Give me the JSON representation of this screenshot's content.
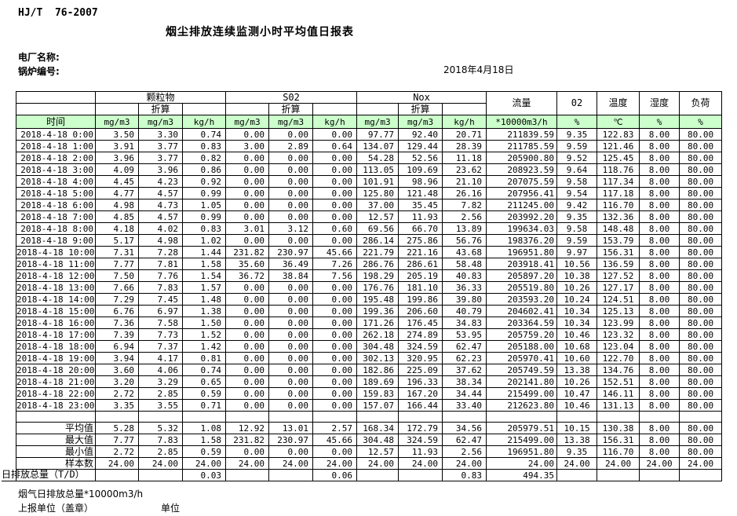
{
  "colors": {
    "header_fill": "#ccffcc",
    "border": "#000000"
  },
  "page": {
    "standard": "HJ/T  76-2007",
    "title": "烟尘排放连续监测小时平均值日报表",
    "plant_label": "电厂名称:",
    "boiler_label": "锅炉编号:",
    "date": "2018年4月18日"
  },
  "table": {
    "header": {
      "time": "时间",
      "groups": [
        "颗粒物",
        "S02",
        "Nox"
      ],
      "converted": "折算",
      "flow": "流量",
      "o2": "02",
      "temp": "温度",
      "humidity": "湿度",
      "load": "负荷",
      "units": [
        "mg/m3",
        "mg/m3",
        "kg/h",
        "mg/m3",
        "mg/m3",
        "kg/h",
        "mg/m3",
        "mg/m3",
        "kg/h",
        "*10000m3/h",
        "%",
        "℃",
        "%",
        "%"
      ]
    },
    "rows": [
      {
        "time": "2018-4-18 0:00",
        "values": [
          "3.50",
          "3.30",
          "0.74",
          "0.00",
          "0.00",
          "0.00",
          "97.77",
          "92.40",
          "20.71",
          "211839.59",
          "9.35",
          "122.83",
          "8.00",
          "80.00"
        ]
      },
      {
        "time": "2018-4-18 1:00",
        "values": [
          "3.91",
          "3.77",
          "0.83",
          "3.00",
          "2.89",
          "0.64",
          "134.07",
          "129.44",
          "28.39",
          "211785.59",
          "9.59",
          "121.46",
          "8.00",
          "80.00"
        ]
      },
      {
        "time": "2018-4-18 2:00",
        "values": [
          "3.96",
          "3.77",
          "0.82",
          "0.00",
          "0.00",
          "0.00",
          "54.28",
          "52.56",
          "11.18",
          "205900.80",
          "9.52",
          "125.45",
          "8.00",
          "80.00"
        ]
      },
      {
        "time": "2018-4-18 3:00",
        "values": [
          "4.09",
          "3.96",
          "0.86",
          "0.00",
          "0.00",
          "0.00",
          "113.05",
          "109.69",
          "23.62",
          "208923.59",
          "9.64",
          "118.76",
          "8.00",
          "80.00"
        ]
      },
      {
        "time": "2018-4-18 4:00",
        "values": [
          "4.45",
          "4.23",
          "0.92",
          "0.00",
          "0.00",
          "0.00",
          "101.91",
          "98.96",
          "21.10",
          "207075.59",
          "9.58",
          "117.34",
          "8.00",
          "80.00"
        ]
      },
      {
        "time": "2018-4-18 5:00",
        "values": [
          "4.77",
          "4.57",
          "0.99",
          "0.00",
          "0.00",
          "0.00",
          "125.80",
          "121.48",
          "26.16",
          "207956.41",
          "9.54",
          "117.18",
          "8.00",
          "80.00"
        ]
      },
      {
        "time": "2018-4-18 6:00",
        "values": [
          "4.98",
          "4.73",
          "1.05",
          "0.00",
          "0.00",
          "0.00",
          "37.00",
          "35.45",
          "7.82",
          "211245.00",
          "9.42",
          "116.70",
          "8.00",
          "80.00"
        ]
      },
      {
        "time": "2018-4-18 7:00",
        "values": [
          "4.85",
          "4.57",
          "0.99",
          "0.00",
          "0.00",
          "0.00",
          "12.57",
          "11.93",
          "2.56",
          "203992.20",
          "9.35",
          "132.36",
          "8.00",
          "80.00"
        ]
      },
      {
        "time": "2018-4-18 8:00",
        "values": [
          "4.18",
          "4.02",
          "0.83",
          "3.01",
          "3.12",
          "0.60",
          "69.56",
          "66.70",
          "13.89",
          "199634.03",
          "9.58",
          "148.48",
          "8.00",
          "80.00"
        ]
      },
      {
        "time": "2018-4-18 9:00",
        "values": [
          "5.17",
          "4.98",
          "1.02",
          "0.00",
          "0.00",
          "0.00",
          "286.14",
          "275.86",
          "56.76",
          "198376.20",
          "9.59",
          "153.79",
          "8.00",
          "80.00"
        ]
      },
      {
        "time": "2018-4-18 10:00",
        "values": [
          "7.31",
          "7.28",
          "1.44",
          "231.82",
          "230.97",
          "45.66",
          "221.79",
          "221.16",
          "43.68",
          "196951.80",
          "9.97",
          "156.31",
          "8.00",
          "80.00"
        ]
      },
      {
        "time": "2018-4-18 11:00",
        "values": [
          "7.77",
          "7.81",
          "1.58",
          "35.60",
          "36.49",
          "7.26",
          "286.76",
          "286.61",
          "58.48",
          "203918.41",
          "10.56",
          "136.59",
          "8.00",
          "80.00"
        ]
      },
      {
        "time": "2018-4-18 12:00",
        "values": [
          "7.50",
          "7.76",
          "1.54",
          "36.72",
          "38.84",
          "7.56",
          "198.29",
          "205.19",
          "40.83",
          "205897.20",
          "10.38",
          "127.52",
          "8.00",
          "80.00"
        ]
      },
      {
        "time": "2018-4-18 13:00",
        "values": [
          "7.66",
          "7.83",
          "1.57",
          "0.00",
          "0.00",
          "0.00",
          "176.76",
          "181.10",
          "36.33",
          "205519.80",
          "10.26",
          "127.17",
          "8.00",
          "80.00"
        ]
      },
      {
        "time": "2018-4-18 14:00",
        "values": [
          "7.29",
          "7.45",
          "1.48",
          "0.00",
          "0.00",
          "0.00",
          "195.48",
          "199.86",
          "39.80",
          "203593.20",
          "10.24",
          "124.51",
          "8.00",
          "80.00"
        ]
      },
      {
        "time": "2018-4-18 15:00",
        "values": [
          "6.76",
          "6.97",
          "1.38",
          "0.00",
          "0.00",
          "0.00",
          "199.36",
          "206.60",
          "40.79",
          "204602.41",
          "10.34",
          "125.13",
          "8.00",
          "80.00"
        ]
      },
      {
        "time": "2018-4-18 16:00",
        "values": [
          "7.36",
          "7.58",
          "1.50",
          "0.00",
          "0.00",
          "0.00",
          "171.26",
          "176.45",
          "34.83",
          "203364.59",
          "10.34",
          "123.99",
          "8.00",
          "80.00"
        ]
      },
      {
        "time": "2018-4-18 17:00",
        "values": [
          "7.39",
          "7.73",
          "1.52",
          "0.00",
          "0.00",
          "0.00",
          "262.18",
          "274.89",
          "53.95",
          "205759.20",
          "10.46",
          "123.32",
          "8.00",
          "80.00"
        ]
      },
      {
        "time": "2018-4-18 18:00",
        "values": [
          "6.94",
          "7.37",
          "1.42",
          "0.00",
          "0.00",
          "0.00",
          "304.48",
          "324.59",
          "62.47",
          "205188.00",
          "10.68",
          "123.04",
          "8.00",
          "80.00"
        ]
      },
      {
        "time": "2018-4-18 19:00",
        "values": [
          "3.94",
          "4.17",
          "0.81",
          "0.00",
          "0.00",
          "0.00",
          "302.13",
          "320.95",
          "62.23",
          "205970.41",
          "10.60",
          "122.70",
          "8.00",
          "80.00"
        ]
      },
      {
        "time": "2018-4-18 20:00",
        "values": [
          "3.60",
          "4.06",
          "0.74",
          "0.00",
          "0.00",
          "0.00",
          "182.86",
          "225.09",
          "37.62",
          "205749.59",
          "13.38",
          "134.76",
          "8.00",
          "80.00"
        ]
      },
      {
        "time": "2018-4-18 21:00",
        "values": [
          "3.20",
          "3.29",
          "0.65",
          "0.00",
          "0.00",
          "0.00",
          "189.69",
          "196.33",
          "38.34",
          "202141.80",
          "10.26",
          "152.51",
          "8.00",
          "80.00"
        ]
      },
      {
        "time": "2018-4-18 22:00",
        "values": [
          "2.72",
          "2.85",
          "0.59",
          "0.00",
          "0.00",
          "0.00",
          "159.83",
          "167.20",
          "34.44",
          "215499.00",
          "10.47",
          "146.11",
          "8.00",
          "80.00"
        ]
      },
      {
        "time": "2018-4-18 23:00",
        "values": [
          "3.35",
          "3.55",
          "0.71",
          "0.00",
          "0.00",
          "0.00",
          "157.07",
          "166.44",
          "33.40",
          "212623.80",
          "10.46",
          "131.13",
          "8.00",
          "80.00"
        ]
      }
    ],
    "summary": [
      {
        "label": "平均值",
        "values": [
          "5.28",
          "5.32",
          "1.08",
          "12.92",
          "13.01",
          "2.57",
          "168.34",
          "172.79",
          "34.56",
          "205979.51",
          "10.15",
          "130.38",
          "8.00",
          "80.00"
        ]
      },
      {
        "label": "最大值",
        "values": [
          "7.77",
          "7.83",
          "1.58",
          "231.82",
          "230.97",
          "45.66",
          "304.48",
          "324.59",
          "62.47",
          "215499.00",
          "13.38",
          "156.31",
          "8.00",
          "80.00"
        ]
      },
      {
        "label": "最小值",
        "values": [
          "2.72",
          "2.85",
          "0.59",
          "0.00",
          "0.00",
          "0.00",
          "12.57",
          "11.93",
          "2.56",
          "196951.80",
          "9.35",
          "116.70",
          "8.00",
          "80.00"
        ]
      },
      {
        "label": "样本数",
        "values": [
          "24.00",
          "24.00",
          "24.00",
          "24.00",
          "24.00",
          "24.00",
          "24.00",
          "24.00",
          "24.00",
          "24.00",
          "24.00",
          "24.00",
          "24.00",
          "24.00"
        ]
      },
      {
        "label": "日排放总量（T/D）",
        "values": [
          "",
          "",
          "0.03",
          "",
          "",
          "0.06",
          "",
          "",
          "0.83",
          "494.35",
          "",
          "",
          "",
          ""
        ]
      }
    ]
  },
  "footer": {
    "flue_gas_total": "烟气日排放总量*10000m3/h",
    "reporting_unit": "上报单位（盖章）",
    "unit": "单位"
  }
}
